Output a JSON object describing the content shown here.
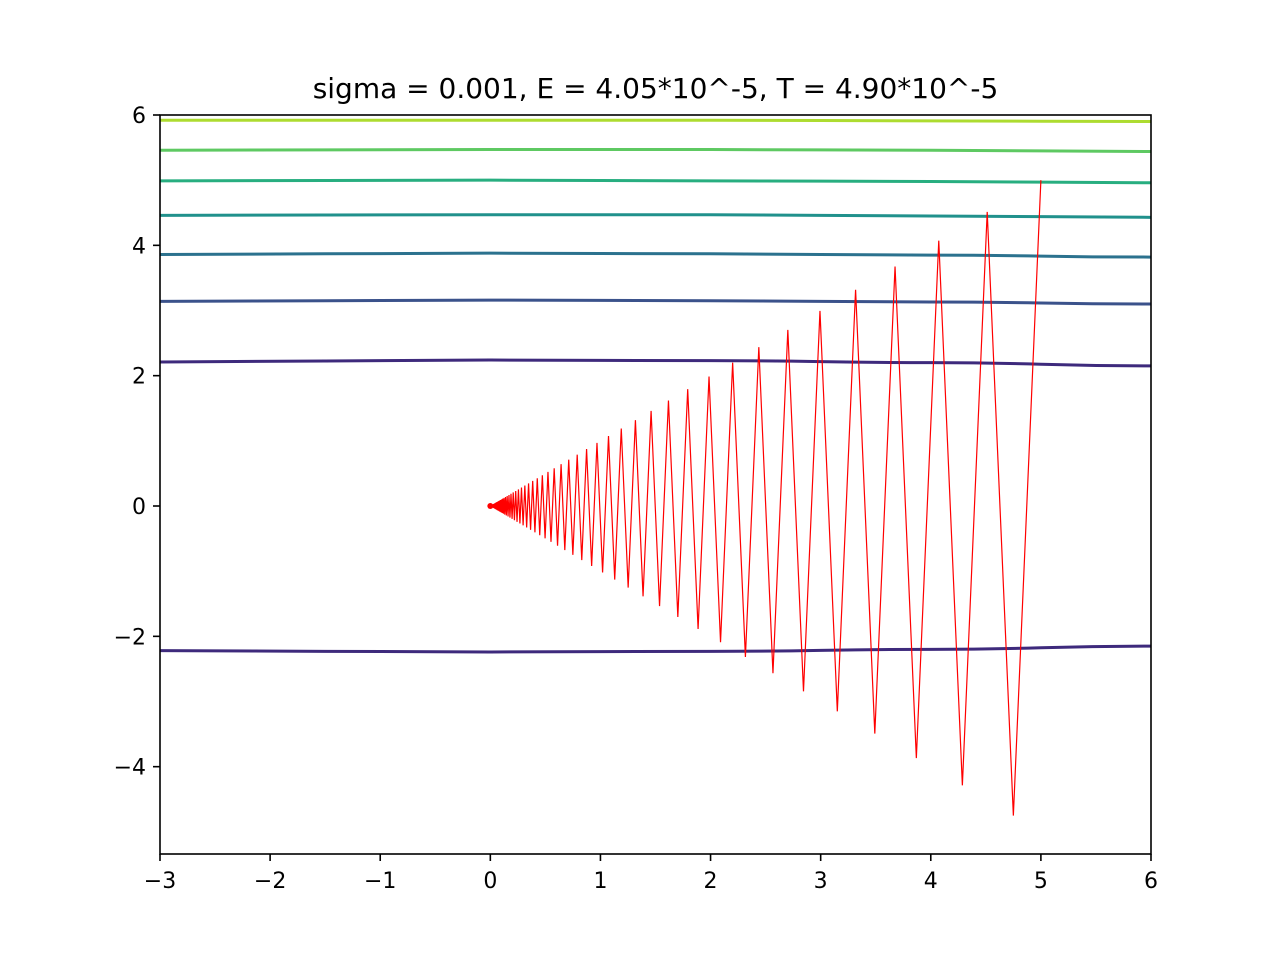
{
  "chart_data": {
    "type": "line",
    "title": "sigma = 0.001, E = 4.05*10^-5, T = 4.90*10^-5",
    "xlabel": "",
    "ylabel": "",
    "xlim": [
      -3,
      6
    ],
    "ylim": [
      -5.34,
      6
    ],
    "grid": false,
    "legend": "none",
    "x_ticks": [
      -3,
      -2,
      -1,
      0,
      1,
      2,
      3,
      4,
      5,
      6
    ],
    "x_tick_labels": [
      "−3",
      "−2",
      "−1",
      "0",
      "1",
      "2",
      "3",
      "4",
      "5",
      "6"
    ],
    "y_ticks": [
      -4,
      -2,
      0,
      2,
      4,
      6
    ],
    "y_tick_labels": [
      "−4",
      "−2",
      "0",
      "2",
      "4",
      "6"
    ],
    "contours": [
      {
        "color": "#3e2a7c",
        "x": [
          -3,
          0,
          2,
          4,
          6
        ],
        "y": [
          -2.22,
          -2.24,
          -2.23,
          -2.2,
          -2.15
        ]
      },
      {
        "color": "#3e2a7c",
        "x": [
          -3,
          0,
          2,
          4,
          6
        ],
        "y": [
          2.21,
          2.24,
          2.23,
          2.2,
          2.15
        ]
      },
      {
        "color": "#3b528b",
        "x": [
          -3,
          0,
          2,
          4,
          6
        ],
        "y": [
          3.14,
          3.16,
          3.15,
          3.13,
          3.1
        ]
      },
      {
        "color": "#2c728e",
        "x": [
          -3,
          0,
          2,
          4,
          6
        ],
        "y": [
          3.86,
          3.88,
          3.87,
          3.85,
          3.82
        ]
      },
      {
        "color": "#21918c",
        "x": [
          -3,
          0,
          2,
          4,
          6
        ],
        "y": [
          4.46,
          4.47,
          4.47,
          4.45,
          4.43
        ]
      },
      {
        "color": "#28ae80",
        "x": [
          -3,
          0,
          2,
          4,
          6
        ],
        "y": [
          4.99,
          5.0,
          4.99,
          4.98,
          4.96
        ]
      },
      {
        "color": "#5ec962",
        "x": [
          -3,
          0,
          2,
          4,
          6
        ],
        "y": [
          5.46,
          5.47,
          5.47,
          5.46,
          5.44
        ]
      },
      {
        "color": "#addc30",
        "x": [
          -3,
          0,
          2,
          4,
          6
        ],
        "y": [
          5.92,
          5.92,
          5.92,
          5.91,
          5.9
        ]
      }
    ],
    "trajectory": {
      "color": "#ff0000",
      "start": [
        5,
        5
      ],
      "end": [
        0,
        0
      ],
      "x_decay": 0.95,
      "y_decay": 0.95,
      "steps": 120
    }
  }
}
